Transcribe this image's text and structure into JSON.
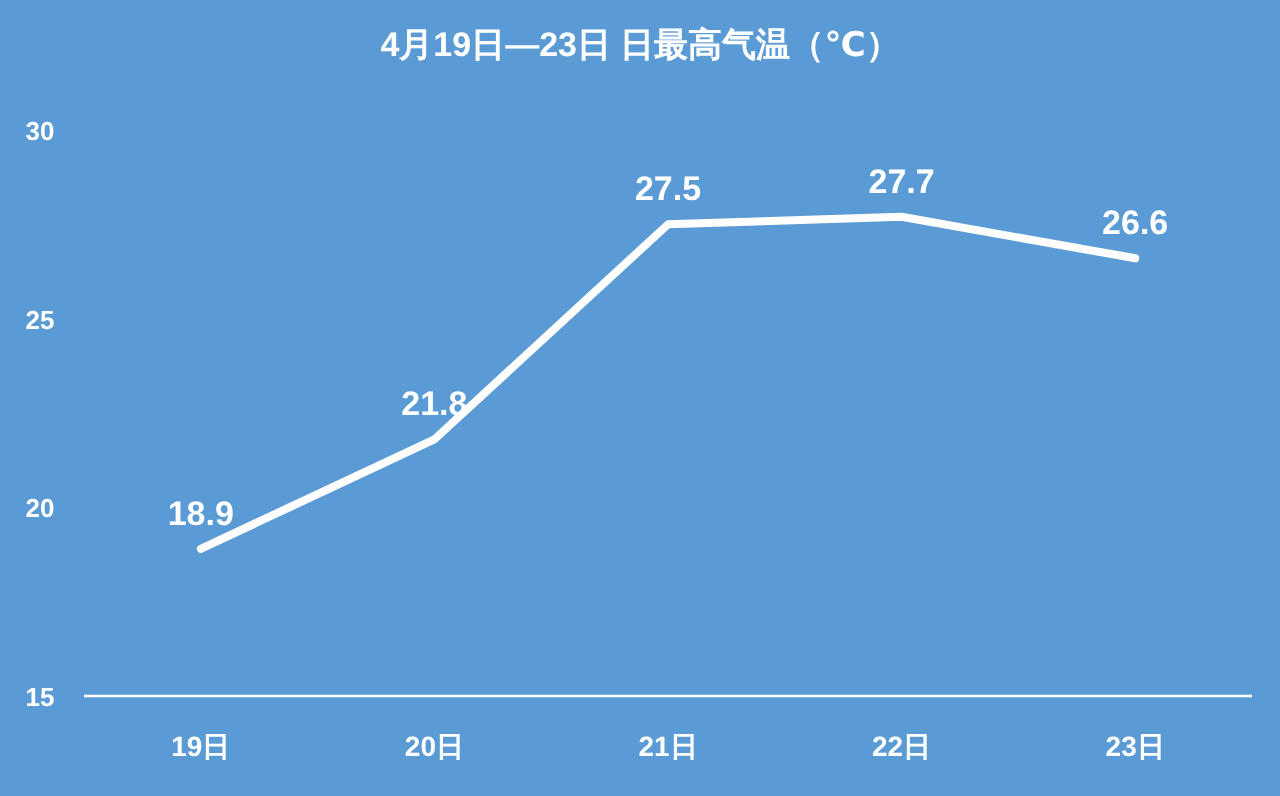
{
  "chart_data": {
    "type": "line",
    "title": "4月19日—23日 日最高气温（℃）",
    "categories": [
      "19日",
      "20日",
      "21日",
      "22日",
      "23日"
    ],
    "series": [
      {
        "color": "#ffffff",
        "values": [
          18.9,
          21.8,
          27.5,
          27.7,
          26.6
        ]
      }
    ],
    "ylim": [
      15,
      30
    ],
    "yticks": [
      15,
      20,
      25,
      30
    ],
    "data_labels": true
  }
}
